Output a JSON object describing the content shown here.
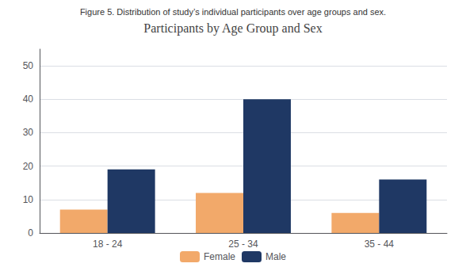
{
  "chart_data": {
    "type": "bar",
    "title": "Participants by Age Group and Sex",
    "suptitle": "Figure 5. Distribution of study’s individual participants over age groups and sex.",
    "categories": [
      "18 - 24",
      "25 - 34",
      "35 - 44"
    ],
    "series": [
      {
        "name": "Female",
        "color": "#F2A96A",
        "values": [
          7,
          12,
          6
        ]
      },
      {
        "name": "Male",
        "color": "#1F3864",
        "values": [
          19,
          40,
          16
        ]
      }
    ],
    "ylim": [
      0,
      55
    ],
    "yticks": [
      0,
      10,
      20,
      30,
      40,
      50
    ],
    "grid": true,
    "legend": "bottom"
  }
}
